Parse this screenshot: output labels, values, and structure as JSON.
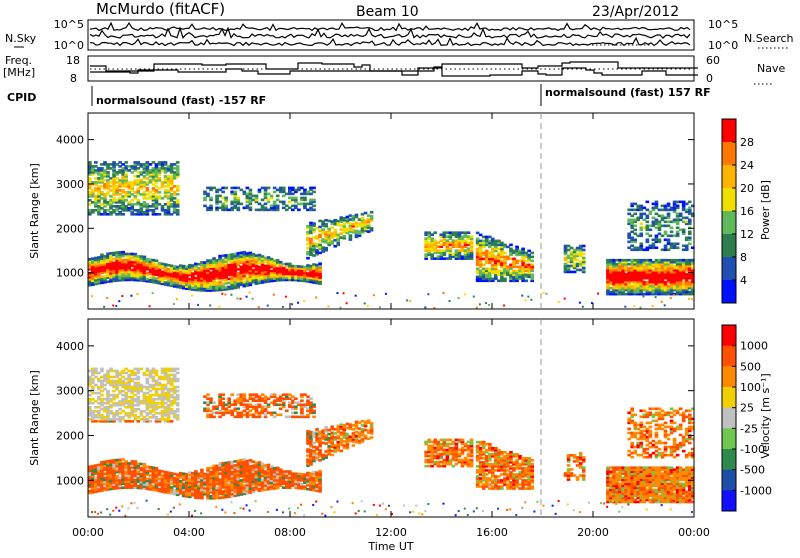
{
  "header": {
    "station": "McMurdo (fitACF)",
    "beam": "Beam 10",
    "date": "23/Apr/2012"
  },
  "top_panels": {
    "nsky_label": "N.Sky",
    "nsearch_label": "N.Search",
    "nsky_ticks": [
      "10^5",
      "10^0"
    ],
    "nsearch_ticks": [
      "10^5",
      "10^0"
    ],
    "freq_label_line1": "Freq.",
    "freq_label_line2": "[MHz]",
    "freq_ticks": [
      "18",
      "8"
    ],
    "nave_label": "Nave",
    "nave_ticks": [
      "60",
      "0"
    ],
    "cpid_label": "CPID",
    "cpid_segments": [
      {
        "text": "normalsound (fast) -157 RF",
        "start_hour": 0.0
      },
      {
        "text": "normalsound (fast) 157 RF",
        "start_hour": 18.0
      }
    ]
  },
  "chart_data": [
    {
      "type": "heatmap",
      "name": "power",
      "ylabel": "Slant Range [km]",
      "xlabel": "",
      "xlim": [
        0,
        24
      ],
      "ylim": [
        180,
        4600
      ],
      "yticks": [
        1000,
        2000,
        3000,
        4000
      ],
      "xticks": [
        0,
        4,
        8,
        12,
        16,
        20,
        24
      ],
      "colorbar": {
        "label": "Power [dB]",
        "ticks": [
          "28",
          "24",
          "20",
          "16",
          "12",
          "8",
          "4"
        ],
        "colors": [
          "#0010ff",
          "#1f4fb0",
          "#2e7d4f",
          "#5fb85a",
          "#f0e000",
          "#ffb400",
          "#ff7800",
          "#ff0000"
        ]
      },
      "dashed_marker_hour": 18.0
    },
    {
      "type": "heatmap",
      "name": "velocity",
      "ylabel": "Slant Range [km]",
      "xlabel": "Time UT",
      "xlim": [
        0,
        24
      ],
      "ylim": [
        180,
        4600
      ],
      "yticks": [
        1000,
        2000,
        3000,
        4000
      ],
      "xticks": [
        0,
        4,
        8,
        12,
        16,
        20,
        24
      ],
      "xticklabels": [
        "00:00",
        "04:00",
        "08:00",
        "12:00",
        "16:00",
        "20:00",
        "00:00"
      ],
      "colorbar": {
        "label": "Velocity [m s⁻¹]",
        "ticks": [
          "1000",
          "500",
          "100",
          "25",
          "-25",
          "-100",
          "-500",
          "-1000"
        ],
        "colors": [
          "#1010ff",
          "#1e4fa8",
          "#2e8a4a",
          "#6ec850",
          "#c0c0c0",
          "#f0d000",
          "#ff8a00",
          "#ff5000",
          "#ff0000"
        ]
      },
      "dashed_marker_hour": 18.0
    }
  ]
}
